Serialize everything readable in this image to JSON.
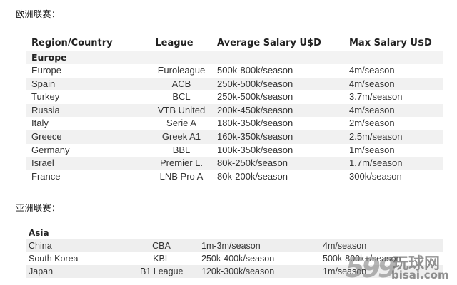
{
  "europe_heading": "欧洲联赛：",
  "asia_heading": "亚洲联赛：",
  "europe_table": {
    "headers": [
      "Region/Country",
      "League",
      "Average Salary U$D",
      "Max Salary U$D"
    ],
    "region_label": "Europe",
    "rows": [
      [
        "Europe",
        "Euroleague",
        "500k-800k/season",
        "4m/season"
      ],
      [
        "Spain",
        "ACB",
        "250k-500k/season",
        "4m/season"
      ],
      [
        "Turkey",
        "BCL",
        "250k-500k/season",
        "3.7m/season"
      ],
      [
        "Russia",
        "VTB United",
        "200k-450k/season",
        "4m/season"
      ],
      [
        "Italy",
        "Serie A",
        "180k-350k/season",
        "2m/season"
      ],
      [
        "Greece",
        "Greek A1",
        "160k-350k/season",
        "2.5m/season"
      ],
      [
        "Germany",
        "BBL",
        "100k-350k/season",
        "1m/season"
      ],
      [
        "Israel",
        "Premier L.",
        "80k-250k/season",
        "1.7m/season"
      ],
      [
        "France",
        "LNB Pro A",
        "80k-200k/season",
        "300k/season"
      ]
    ]
  },
  "asia_table": {
    "region_label": "Asia",
    "rows": [
      [
        "China",
        "CBA",
        "1m-3m/season",
        "4m/season"
      ],
      [
        "South Korea",
        "KBL",
        "250k-400k/season",
        "500k-800k+/season"
      ],
      [
        "Japan",
        "B1 League",
        "120k-300k/season",
        "1m/season"
      ]
    ]
  },
  "watermark": {
    "number": "599",
    "cn": "玩球网",
    "en": "bisai.com"
  }
}
